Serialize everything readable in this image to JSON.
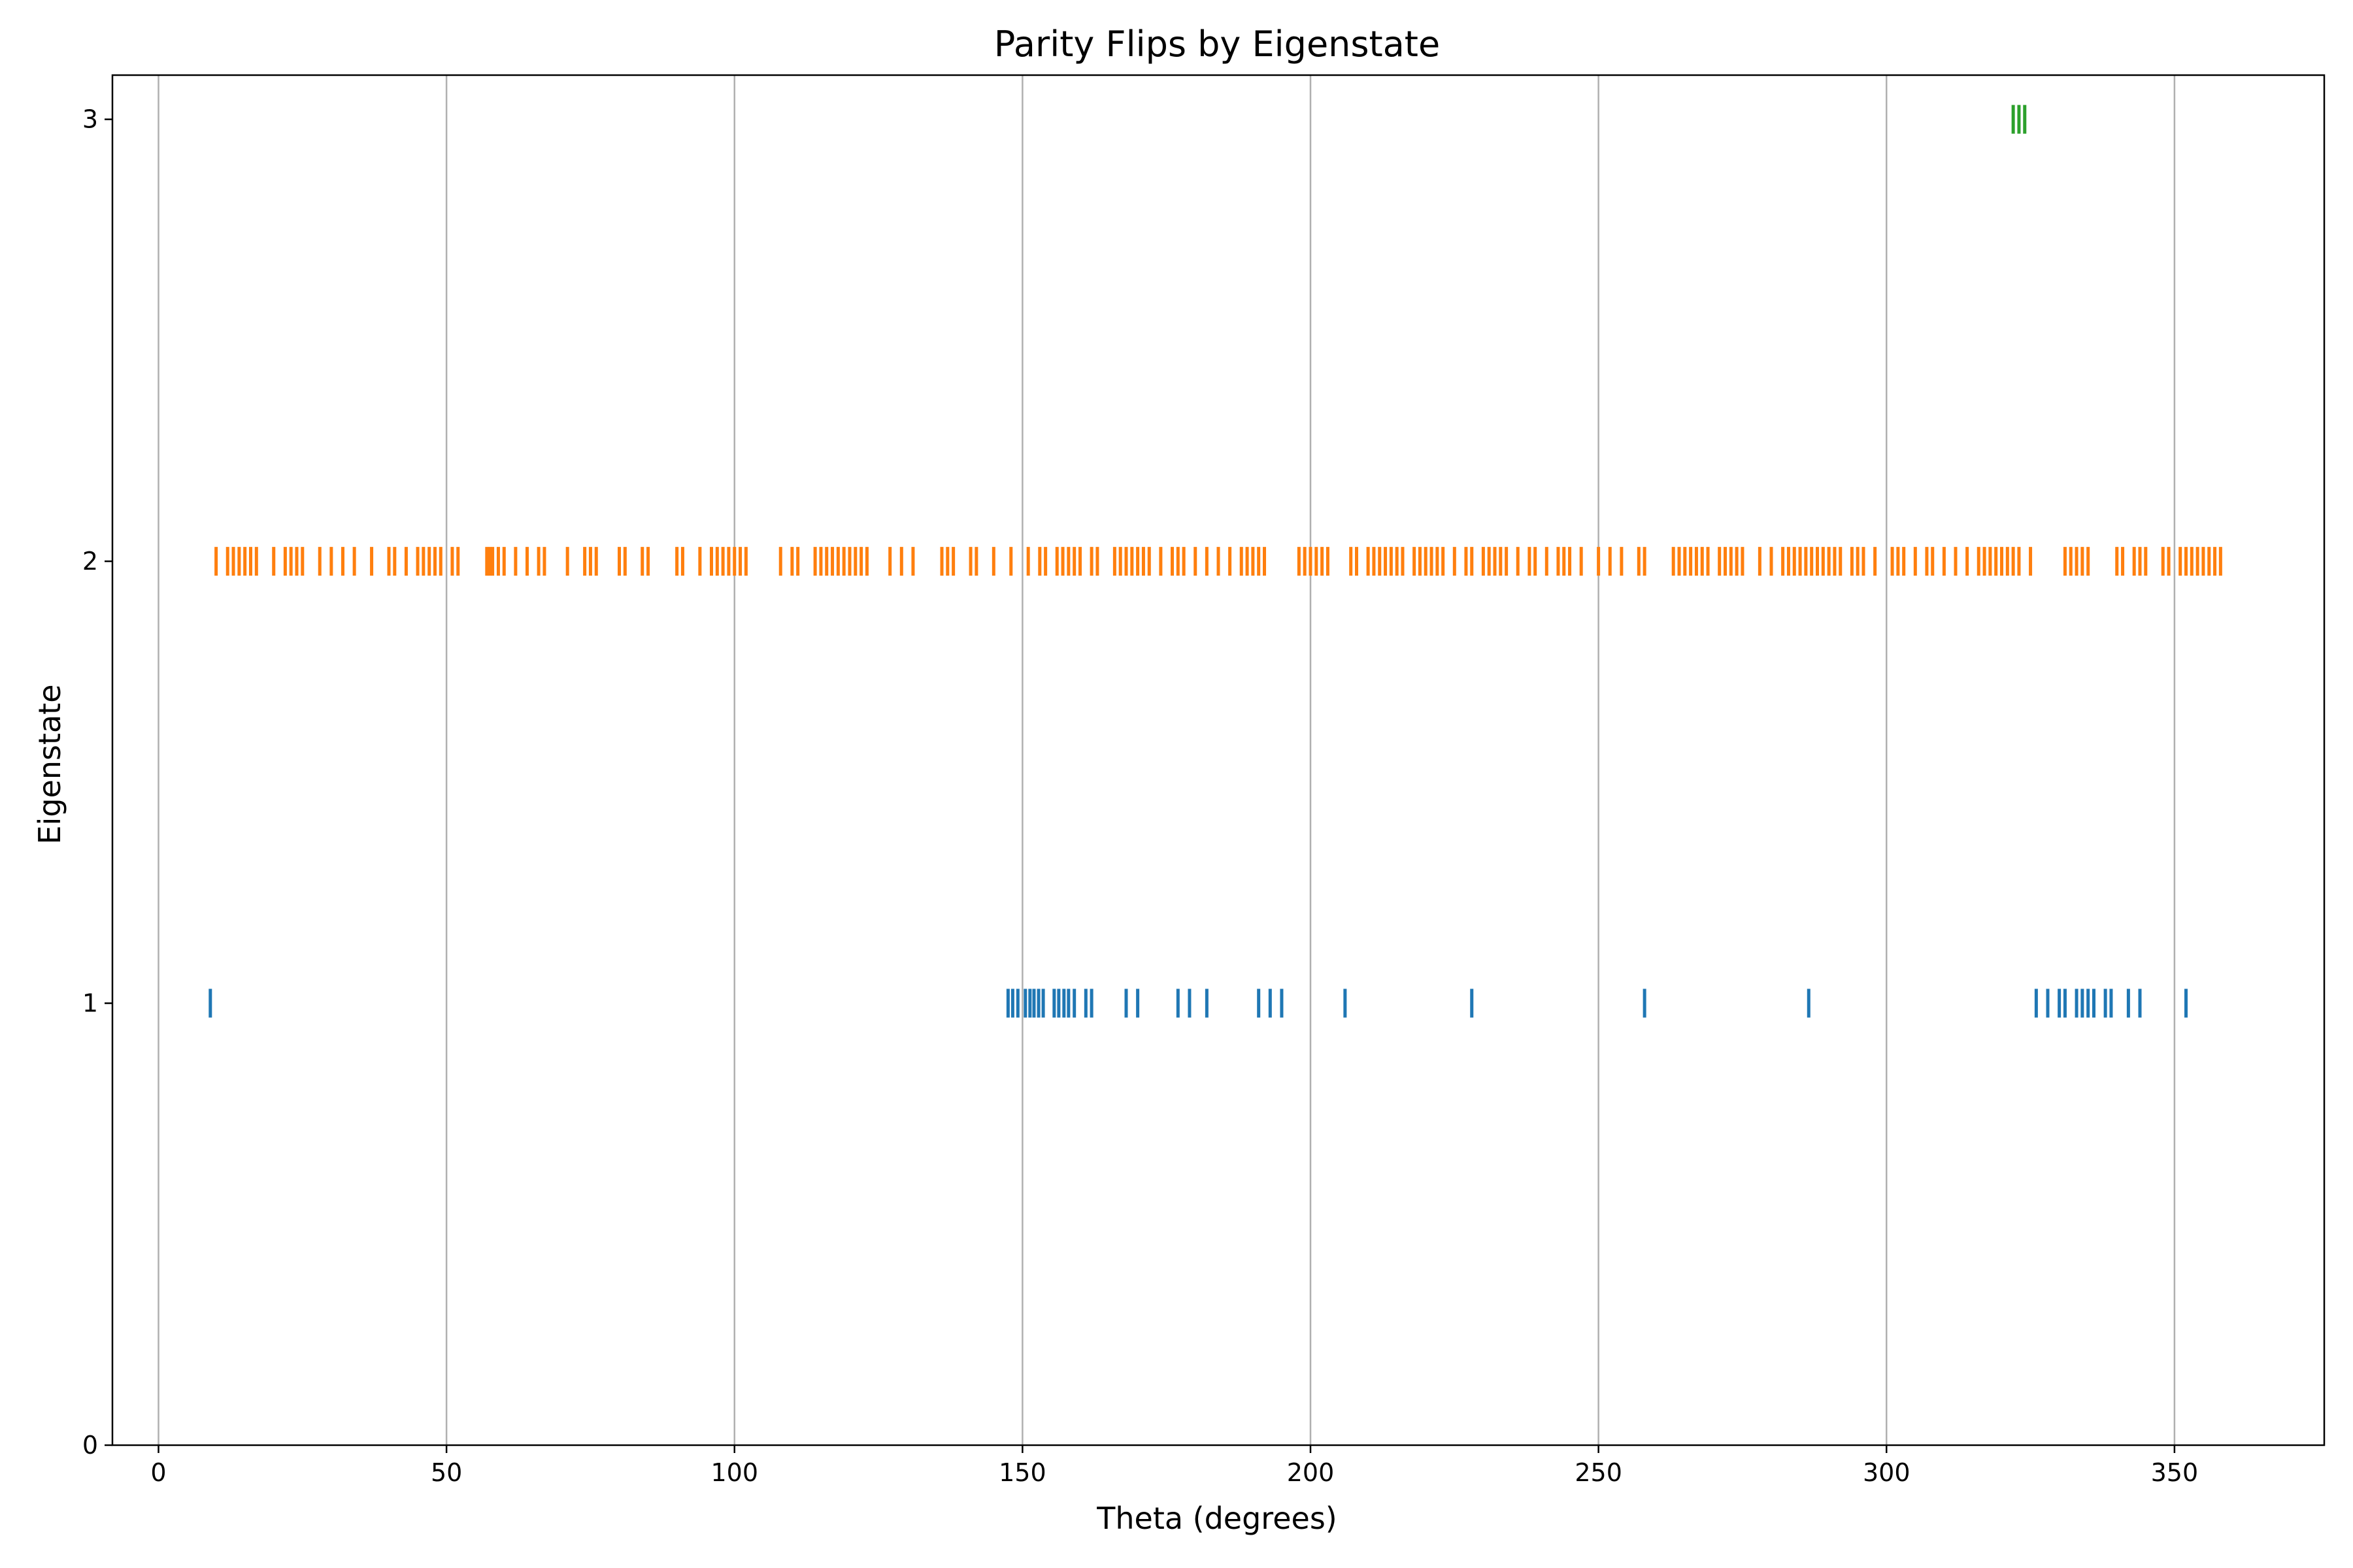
{
  "chart_data": {
    "type": "scatter",
    "title": "Parity Flips by Eigenstate",
    "xlabel": "Theta (degrees)",
    "ylabel": "Eigenstate",
    "xlim": [
      -8,
      376
    ],
    "ylim": [
      0,
      3.1
    ],
    "x_ticks": [
      0,
      50,
      100,
      150,
      200,
      250,
      300,
      350
    ],
    "y_ticks": [
      0,
      1,
      2,
      3
    ],
    "grid": "vertical",
    "marker": "vertical-line",
    "series": [
      {
        "eigenstate": 1,
        "color": "#1f77b4",
        "x": [
          9,
          147.5,
          148.3,
          149.2,
          150.5,
          151.3,
          152.0,
          152.8,
          153.6,
          155.5,
          156.3,
          157.2,
          158.0,
          159.0,
          161.0,
          162.0,
          168.0,
          170.0,
          177.0,
          179.0,
          182.0,
          191.0,
          193.0,
          195.0,
          206.0,
          228.0,
          258.0,
          286.5,
          326.0,
          328.0,
          330.0,
          331.0,
          333.0,
          334.0,
          335.0,
          336.0,
          338.0,
          339.0,
          342.0,
          344.0,
          352.0
        ]
      },
      {
        "eigenstate": 2,
        "color": "#ff7f0e",
        "x": [
          10,
          12,
          13,
          14,
          15,
          16,
          17,
          20,
          22,
          23,
          24,
          25,
          28,
          30,
          32,
          34,
          37,
          40,
          41,
          43,
          45,
          46,
          47,
          48,
          49,
          51,
          52,
          57,
          57.5,
          58,
          59,
          60,
          62,
          64,
          66,
          67,
          71,
          74,
          75,
          76,
          80,
          81,
          84,
          85,
          90,
          91,
          94,
          96,
          97,
          98,
          99,
          100,
          101,
          102,
          108,
          110,
          111,
          114,
          115,
          116,
          117,
          118,
          119,
          120,
          121,
          122,
          123,
          127,
          129,
          131,
          136,
          137,
          138,
          141,
          142,
          145,
          148,
          151,
          153,
          154,
          156,
          157,
          158,
          159,
          160,
          162,
          163,
          166,
          167,
          168,
          169,
          170,
          171,
          172,
          174,
          176,
          177,
          178,
          180,
          182,
          184,
          186,
          188,
          189,
          190,
          191,
          192,
          198,
          199,
          200,
          201,
          202,
          203,
          207,
          208,
          210,
          211,
          212,
          213,
          214,
          215,
          216,
          218,
          219,
          220,
          221,
          222,
          223,
          225,
          227,
          228,
          230,
          231,
          232,
          233,
          234,
          236,
          238,
          239,
          241,
          243,
          244,
          245,
          247,
          250,
          252,
          254,
          257,
          258,
          263,
          264,
          265,
          266,
          267,
          268,
          269,
          271,
          272,
          273,
          274,
          275,
          278,
          280,
          282,
          283,
          284,
          285,
          286,
          287,
          288,
          289,
          290,
          291,
          292,
          294,
          295,
          296,
          298,
          301,
          302,
          303,
          305,
          307,
          308,
          310,
          312,
          314,
          316,
          317,
          318,
          319,
          320,
          321,
          322,
          323,
          325,
          331,
          332,
          333,
          334,
          335,
          340,
          341,
          343,
          344,
          345,
          348,
          349,
          351,
          352,
          353,
          354,
          355,
          356,
          357,
          358
        ]
      },
      {
        "eigenstate": 3,
        "color": "#2ca02c",
        "x": [
          322,
          323,
          324
        ]
      }
    ]
  }
}
